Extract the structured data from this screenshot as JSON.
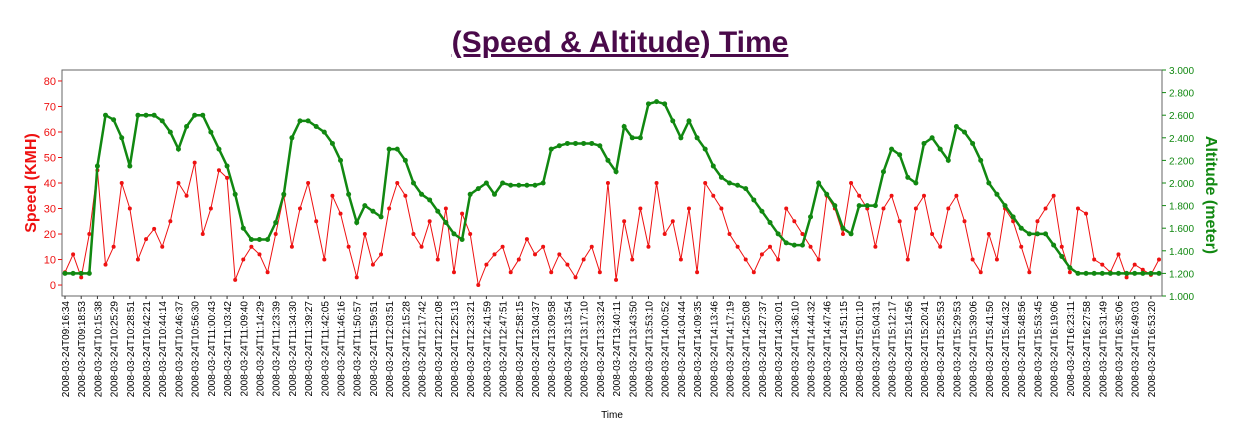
{
  "chart_data": {
    "type": "line",
    "title": "(Speed & Altitude) Time",
    "x_label": "Time",
    "y_label": "Speed (KMH)",
    "y2_label": "Altitude (meter)",
    "categories": [
      "2008-03-24T09:16:34",
      null,
      "2008-03-24T09:18:53",
      null,
      "2008-03-24T10:15:38",
      null,
      "2008-03-24T10:25:29",
      null,
      "2008-03-24T10:28:51",
      null,
      "2008-03-24T10:42:21",
      null,
      "2008-03-24T10:44:14",
      null,
      "2008-03-24T10:46:37",
      null,
      "2008-03-24T10:56:30",
      null,
      "2008-03-24T11:00:43",
      null,
      "2008-03-24T11:03:42",
      null,
      "2008-03-24T11:09:40",
      null,
      "2008-03-24T11:14:29",
      null,
      "2008-03-24T11:23:39",
      null,
      "2008-03-24T11:34:30",
      null,
      "2008-03-24T11:39:27",
      null,
      "2008-03-24T11:42:05",
      null,
      "2008-03-24T11:46:16",
      null,
      "2008-03-24T11:50:57",
      null,
      "2008-03-24T11:59:51",
      null,
      "2008-03-24T12:03:51",
      null,
      "2008-03-24T12:15:28",
      null,
      "2008-03-24T12:17:42",
      null,
      "2008-03-24T12:21:08",
      null,
      "2008-03-24T12:25:13",
      null,
      "2008-03-24T12:33:21",
      null,
      "2008-03-24T12:41:59",
      null,
      "2008-03-24T12:47:51",
      null,
      "2008-03-24T12:58:15",
      null,
      "2008-03-24T13:04:37",
      null,
      "2008-03-24T13:09:58",
      null,
      "2008-03-24T13:13:54",
      null,
      "2008-03-24T13:17:10",
      null,
      "2008-03-24T13:33:24",
      null,
      "2008-03-24T13:40:11",
      null,
      "2008-03-24T13:43:50",
      null,
      "2008-03-24T13:53:10",
      null,
      "2008-03-24T14:00:52",
      null,
      "2008-03-24T14:04:44",
      null,
      "2008-03-24T14:09:35",
      null,
      "2008-03-24T14:13:46",
      null,
      "2008-03-24T14:17:19",
      null,
      "2008-03-24T14:25:08",
      null,
      "2008-03-24T14:27:37",
      null,
      "2008-03-24T14:30:01",
      null,
      "2008-03-24T14:36:10",
      null,
      "2008-03-24T14:44:32",
      null,
      "2008-03-24T14:47:46",
      null,
      "2008-03-24T14:51:15",
      null,
      "2008-03-24T15:01:10",
      null,
      "2008-03-24T15:04:31",
      null,
      "2008-03-24T15:12:17",
      null,
      "2008-03-24T15:14:56",
      null,
      "2008-03-24T15:20:41",
      null,
      "2008-03-24T15:25:53",
      null,
      "2008-03-24T15:29:53",
      null,
      "2008-03-24T15:39:06",
      null,
      "2008-03-24T15:41:50",
      null,
      "2008-03-24T15:44:32",
      null,
      "2008-03-24T15:48:56",
      null,
      "2008-03-24T15:53:45",
      null,
      "2008-03-24T16:19:06",
      null,
      "2008-03-24T16:23:11",
      null,
      "2008-03-24T16:27:58",
      null,
      "2008-03-24T16:31:49",
      null,
      "2008-03-24T16:35:06",
      null,
      "2008-03-24T16:49:03",
      null,
      "2008-03-24T16:53:20",
      null
    ],
    "series": [
      {
        "color": "#ee1111",
        "values": [
          5,
          12,
          3,
          20,
          45,
          8,
          15,
          40,
          30,
          10,
          18,
          22,
          15,
          25,
          40,
          35,
          48,
          20,
          30,
          45,
          42,
          2,
          10,
          15,
          12,
          5,
          20,
          35,
          15,
          30,
          40,
          25,
          10,
          35,
          28,
          15,
          3,
          20,
          8,
          12,
          30,
          40,
          35,
          20,
          15,
          25,
          10,
          30,
          5,
          28,
          20,
          0,
          8,
          12,
          15,
          5,
          10,
          18,
          12,
          15,
          5,
          12,
          8,
          3,
          10,
          15,
          5,
          40,
          2,
          25,
          10,
          30,
          15,
          40,
          20,
          25,
          10,
          30,
          5,
          40,
          35,
          30,
          20,
          15,
          10,
          5,
          12,
          15,
          10,
          30,
          25,
          20,
          15,
          10,
          35,
          30,
          20,
          40,
          35,
          30,
          15,
          30,
          35,
          25,
          10,
          30,
          35,
          20,
          15,
          30,
          35,
          25,
          10,
          5,
          20,
          10,
          30,
          25,
          15,
          5,
          25,
          30,
          35,
          15,
          5,
          30,
          28,
          10,
          8,
          5,
          12,
          3,
          8,
          6,
          4,
          10
        ]
      },
      {
        "color": "#118811",
        "axis": "y2",
        "values": [
          1200,
          1200,
          1200,
          1200,
          2150,
          2600,
          2560,
          2400,
          2150,
          2600,
          2600,
          2600,
          2550,
          2450,
          2300,
          2500,
          2600,
          2600,
          2450,
          2300,
          2150,
          1900,
          1600,
          1500,
          1500,
          1500,
          1650,
          1900,
          2400,
          2550,
          2550,
          2500,
          2450,
          2350,
          2200,
          1900,
          1650,
          1800,
          1750,
          1700,
          2300,
          2300,
          2200,
          2000,
          1900,
          1850,
          1750,
          1650,
          1550,
          1500,
          1900,
          1950,
          2000,
          1900,
          2000,
          1980,
          1980,
          1980,
          1980,
          2000,
          2300,
          2330,
          2350,
          2350,
          2350,
          2350,
          2330,
          2200,
          2100,
          2500,
          2400,
          2400,
          2700,
          2720,
          2700,
          2550,
          2400,
          2550,
          2400,
          2300,
          2150,
          2050,
          2000,
          1980,
          1950,
          1850,
          1750,
          1650,
          1550,
          1470,
          1450,
          1450,
          1700,
          2000,
          1900,
          1800,
          1600,
          1550,
          1800,
          1800,
          1800,
          2100,
          2300,
          2250,
          2050,
          2000,
          2350,
          2400,
          2300,
          2200,
          2500,
          2450,
          2350,
          2200,
          2000,
          1900,
          1800,
          1700,
          1600,
          1550,
          1550,
          1550,
          1450,
          1350,
          1250,
          1200,
          1200,
          1200,
          1200,
          1200,
          1200,
          1200,
          1200,
          1200,
          1200,
          1200
        ]
      }
    ],
    "ylim": [
      -4.3,
      84.3
    ],
    "yticks": [
      0,
      10,
      20,
      30,
      40,
      50,
      60,
      70,
      80
    ],
    "y2lim": [
      1000,
      3000
    ],
    "y2ticks": [
      {
        "value": 1000,
        "label": "1.000"
      },
      {
        "value": 1200,
        "label": "1.200"
      },
      {
        "value": 1400,
        "label": "1.400"
      },
      {
        "value": 1600,
        "label": "1.600"
      },
      {
        "value": 1800,
        "label": "1.800"
      },
      {
        "value": 2000,
        "label": "2.000"
      },
      {
        "value": 2200,
        "label": "2.200"
      },
      {
        "value": 2400,
        "label": "2.400"
      },
      {
        "value": 2600,
        "label": "2.600"
      },
      {
        "value": 2800,
        "label": "2.800"
      },
      {
        "value": 3000,
        "label": "3.000"
      }
    ],
    "grid": false
  }
}
